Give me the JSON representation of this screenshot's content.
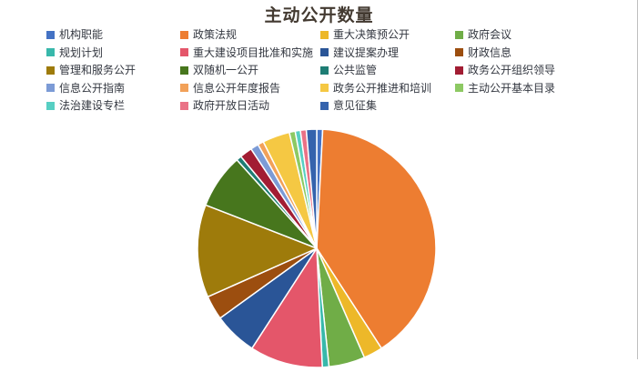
{
  "title": "主动公开数量",
  "colors": {
    "title_text": "#433a31",
    "legend_text": "#333740",
    "background": "#ffffff",
    "panel_edge": "#bfbfbf",
    "slice_separator": "#ffffff"
  },
  "legend": {
    "items": [
      {
        "label": "机构职能",
        "color": "#4472C4"
      },
      {
        "label": "政策法规",
        "color": "#ED7D31"
      },
      {
        "label": "重大决策预公开",
        "color": "#EDB829"
      },
      {
        "label": "政府会议",
        "color": "#70AD47"
      },
      {
        "label": "规划计划",
        "color": "#38B8AB"
      },
      {
        "label": "重大建设项目批准和实施",
        "color": "#E4566A"
      },
      {
        "label": "建议提案办理",
        "color": "#2A5597"
      },
      {
        "label": "财政信息",
        "color": "#9C4E0F"
      },
      {
        "label": "管理和服务公开",
        "color": "#9E7B0B"
      },
      {
        "label": "双随机一公开",
        "color": "#47761D"
      },
      {
        "label": "公共监管",
        "color": "#1E7D74"
      },
      {
        "label": "政务公开组织领导",
        "color": "#A21D33"
      },
      {
        "label": "信息公开指南",
        "color": "#7C9BD6"
      },
      {
        "label": "信息公开年度报告",
        "color": "#F2A159"
      },
      {
        "label": "政务公开推进和培训",
        "color": "#F5C843"
      },
      {
        "label": "主动公开基本目录",
        "color": "#8DC963"
      },
      {
        "label": "法治建设专栏",
        "color": "#57CFC3"
      },
      {
        "label": "政府开放日活动",
        "color": "#EA7286"
      },
      {
        "label": "意见征集",
        "color": "#3563AD"
      }
    ]
  },
  "chart_data": {
    "type": "pie",
    "title": "主动公开数量",
    "legend_position": "top",
    "start_angle_deg": 0,
    "direction": "clockwise",
    "value_unit": "percent (estimated from slice angles)",
    "categories": [
      "机构职能",
      "政策法规",
      "重大决策预公开",
      "政府会议",
      "规划计划",
      "重大建设项目批准和实施",
      "建议提案办理",
      "财政信息",
      "管理和服务公开",
      "双随机一公开",
      "公共监管",
      "政务公开组织领导",
      "信息公开指南",
      "信息公开年度报告",
      "政务公开推进和培训",
      "主动公开基本目录",
      "法治建设专栏",
      "政府开放日活动",
      "意见征集"
    ],
    "values": [
      0.8,
      40.1,
      2.6,
      4.9,
      0.9,
      9.9,
      5.9,
      3.3,
      12.6,
      7.4,
      0.7,
      1.7,
      1.1,
      0.8,
      3.7,
      0.8,
      0.7,
      0.8,
      1.4
    ],
    "colors": [
      "#4472C4",
      "#ED7D31",
      "#EDB829",
      "#70AD47",
      "#38B8AB",
      "#E4566A",
      "#2A5597",
      "#9C4E0F",
      "#9E7B0B",
      "#47761D",
      "#1E7D74",
      "#A21D33",
      "#7C9BD6",
      "#F2A159",
      "#F5C843",
      "#8DC963",
      "#57CFC3",
      "#EA7286",
      "#3563AD"
    ]
  }
}
